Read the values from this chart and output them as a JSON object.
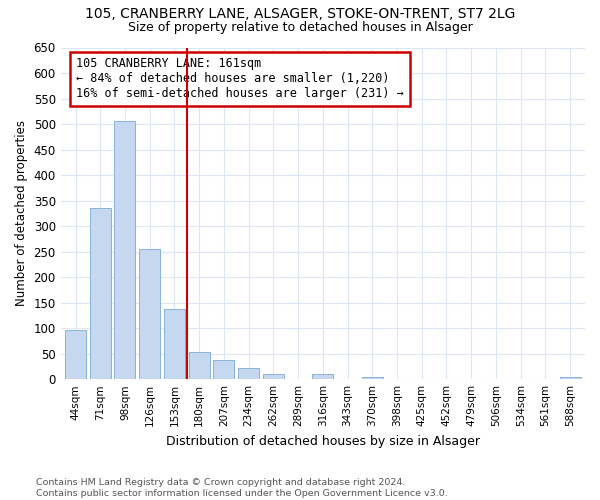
{
  "title1": "105, CRANBERRY LANE, ALSAGER, STOKE-ON-TRENT, ST7 2LG",
  "title2": "Size of property relative to detached houses in Alsager",
  "xlabel": "Distribution of detached houses by size in Alsager",
  "ylabel": "Number of detached properties",
  "categories": [
    "44sqm",
    "71sqm",
    "98sqm",
    "126sqm",
    "153sqm",
    "180sqm",
    "207sqm",
    "234sqm",
    "262sqm",
    "289sqm",
    "316sqm",
    "343sqm",
    "370sqm",
    "398sqm",
    "425sqm",
    "452sqm",
    "479sqm",
    "506sqm",
    "534sqm",
    "561sqm",
    "588sqm"
  ],
  "values": [
    97,
    335,
    505,
    255,
    138,
    54,
    38,
    21,
    10,
    0,
    11,
    0,
    5,
    0,
    0,
    0,
    0,
    0,
    0,
    0,
    5
  ],
  "bar_color": "#c5d8f0",
  "bar_edge_color": "#7aaad4",
  "vline_x": 4.5,
  "vline_color": "#cc0000",
  "annotation_line1": "105 CRANBERRY LANE: 161sqm",
  "annotation_line2": "← 84% of detached houses are smaller (1,220)",
  "annotation_line3": "16% of semi-detached houses are larger (231) →",
  "annotation_box_facecolor": "white",
  "annotation_box_edgecolor": "#cc0000",
  "ylim": [
    0,
    650
  ],
  "yticks": [
    0,
    50,
    100,
    150,
    200,
    250,
    300,
    350,
    400,
    450,
    500,
    550,
    600,
    650
  ],
  "footnote": "Contains HM Land Registry data © Crown copyright and database right 2024.\nContains public sector information licensed under the Open Government Licence v3.0.",
  "bg_color": "#ffffff",
  "grid_color": "#dce6f5",
  "title1_fontsize": 10,
  "title2_fontsize": 9
}
